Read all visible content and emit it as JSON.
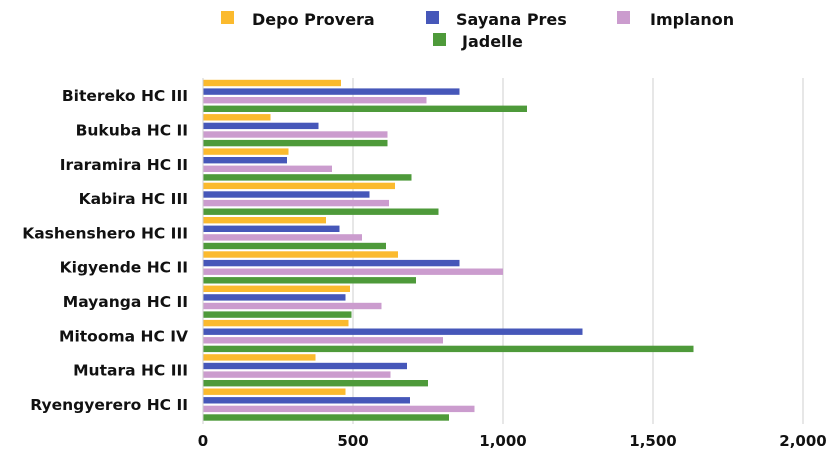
{
  "chart_data": {
    "type": "bar",
    "orientation": "horizontal",
    "title": "",
    "xlabel": "",
    "ylabel": "",
    "categories": [
      "Bitereko HC III",
      "Bukuba HC II",
      "Iraramira HC II",
      "Kabira HC III",
      "Kashenshero HC III",
      "Kigyende HC II",
      "Mayanga HC II",
      "Mitooma HC IV",
      "Mutara HC III",
      "Ryengyerero HC II"
    ],
    "series": [
      {
        "name": "Depo Provera",
        "color": "#FBBA2E",
        "values": [
          460,
          225,
          285,
          640,
          410,
          650,
          490,
          485,
          375,
          475
        ]
      },
      {
        "name": "Sayana Pres",
        "color": "#4657B9",
        "values": [
          855,
          385,
          280,
          555,
          455,
          855,
          475,
          1265,
          680,
          690
        ]
      },
      {
        "name": "Implanon",
        "color": "#CB9CCE",
        "values": [
          745,
          615,
          430,
          620,
          530,
          1000,
          595,
          800,
          625,
          905
        ]
      },
      {
        "name": "Jadelle",
        "color": "#4E9A3A",
        "values": [
          1080,
          615,
          695,
          785,
          610,
          710,
          495,
          1635,
          750,
          820
        ]
      }
    ],
    "xlim": [
      0,
      2000
    ],
    "ticks": [
      "0",
      "500",
      "1,000",
      "1,500",
      "2,000"
    ],
    "grid": true,
    "legend_position": "top"
  }
}
